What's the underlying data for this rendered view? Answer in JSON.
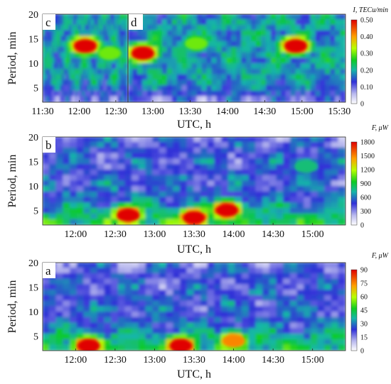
{
  "figure": {
    "charts": [
      {
        "id": "c",
        "label": "c"
      },
      {
        "id": "d",
        "label": "d"
      },
      {
        "id": "b",
        "label": "b"
      },
      {
        "id": "a",
        "label": "a"
      }
    ]
  },
  "chart_data": [
    {
      "type": "heatmap",
      "panel": "c",
      "xlabel": "UTC, h",
      "ylabel": "Period, min",
      "x_tick_labels": [
        "11:30",
        "12:00",
        "12:30"
      ],
      "y_tick_labels": [
        "5",
        "10",
        "15",
        "20"
      ],
      "xlim": [
        "11:30",
        "12:40"
      ],
      "ylim": [
        2,
        20
      ],
      "colorbar": {
        "title": "I, TECu/min",
        "ticks": [
          "0",
          "0.10",
          "0.20",
          "0.30",
          "0.40",
          "0.50"
        ],
        "range": [
          0,
          0.5
        ]
      },
      "hotspots": [
        {
          "x": "12:05",
          "y": 13.5,
          "value": 0.5
        },
        {
          "x": "12:25",
          "y": 12,
          "value": 0.3
        }
      ]
    },
    {
      "type": "heatmap",
      "panel": "d",
      "xlabel": "UTC, h",
      "ylabel": "Period, min",
      "x_tick_labels": [
        "13:00",
        "13:30",
        "14:00",
        "14:30",
        "15:00",
        "15:30"
      ],
      "y_tick_labels": [
        "5",
        "10",
        "15",
        "20"
      ],
      "xlim": [
        "12:40",
        "15:35"
      ],
      "ylim": [
        2,
        20
      ],
      "colorbar": {
        "title": "I, TECu/min",
        "ticks": [
          "0",
          "0.10",
          "0.20",
          "0.30",
          "0.40",
          "0.50"
        ],
        "range": [
          0,
          0.5
        ]
      },
      "hotspots": [
        {
          "x": "12:52",
          "y": 12,
          "value": 0.5
        },
        {
          "x": "13:35",
          "y": 14,
          "value": 0.3
        },
        {
          "x": "14:55",
          "y": 13.5,
          "value": 0.5
        }
      ]
    },
    {
      "type": "heatmap",
      "panel": "b",
      "xlabel": "UTC, h",
      "ylabel": "Period, min",
      "x_tick_labels": [
        "12:00",
        "12:30",
        "13:00",
        "13:30",
        "14:00",
        "14:30",
        "15:00"
      ],
      "y_tick_labels": [
        "5",
        "10",
        "15",
        "20"
      ],
      "xlim": [
        "11:35",
        "15:25"
      ],
      "ylim": [
        2,
        20
      ],
      "colorbar": {
        "title": "F, μW",
        "ticks": [
          "0",
          "300",
          "600",
          "900",
          "1200",
          "1500",
          "1800"
        ],
        "range": [
          0,
          1800
        ]
      },
      "hotspots": [
        {
          "x": "12:40",
          "y": 4,
          "value": 1800
        },
        {
          "x": "13:30",
          "y": 3.5,
          "value": 1800
        },
        {
          "x": "13:55",
          "y": 5,
          "value": 1800
        },
        {
          "x": "14:55",
          "y": 14,
          "value": 800
        }
      ]
    },
    {
      "type": "heatmap",
      "panel": "a",
      "xlabel": "UTC, h",
      "ylabel": "Period, min",
      "x_tick_labels": [
        "12:00",
        "12:30",
        "13:00",
        "13:30",
        "14:00",
        "14:30",
        "15:00"
      ],
      "y_tick_labels": [
        "5",
        "10",
        "15",
        "20"
      ],
      "xlim": [
        "11:35",
        "15:25"
      ],
      "ylim": [
        2,
        20
      ],
      "colorbar": {
        "title": "F, μW",
        "ticks": [
          "0",
          "15",
          "30",
          "45",
          "60",
          "75",
          "90"
        ],
        "range": [
          0,
          90
        ]
      },
      "hotspots": [
        {
          "x": "12:10",
          "y": 3,
          "value": 90
        },
        {
          "x": "13:20",
          "y": 3,
          "value": 90
        },
        {
          "x": "14:00",
          "y": 4,
          "value": 75
        }
      ]
    }
  ]
}
